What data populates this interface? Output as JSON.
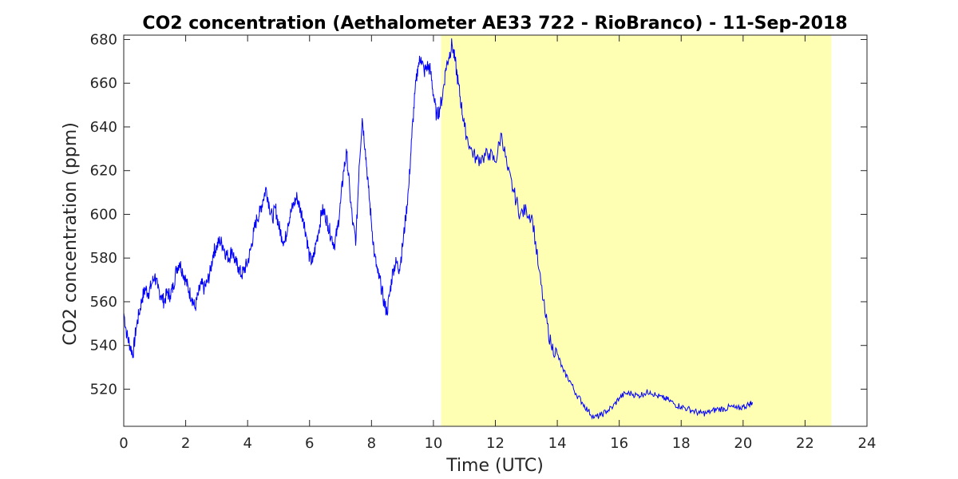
{
  "chart_data": {
    "type": "line",
    "title": "CO2 concentration (Aethalometer AE33 722 - RioBranco) - 11-Sep-2018",
    "xlabel": "Time (UTC)",
    "ylabel": "CO2 concentration (ppm)",
    "xlim": [
      0,
      24
    ],
    "ylim": [
      503,
      682
    ],
    "xticks": [
      "0",
      "2",
      "4",
      "6",
      "8",
      "10",
      "12",
      "14",
      "16",
      "18",
      "20",
      "22",
      "24"
    ],
    "yticks": [
      "520",
      "540",
      "560",
      "580",
      "600",
      "620",
      "640",
      "660",
      "680"
    ],
    "grid": false,
    "line_color": "#0000ff",
    "highlight": {
      "x_start": 10.25,
      "x_end": 22.85,
      "color": "#ffffb3"
    },
    "series": [
      {
        "x": [
          0,
          0.1,
          0.2,
          0.3,
          0.4,
          0.5,
          0.6,
          0.7,
          0.8,
          0.9,
          1.0,
          1.1,
          1.2,
          1.3,
          1.4,
          1.5,
          1.6,
          1.7,
          1.8,
          1.9,
          2.0,
          2.1,
          2.2,
          2.3,
          2.4,
          2.5,
          2.6,
          2.7,
          2.8,
          2.9,
          3.0,
          3.1,
          3.2,
          3.3,
          3.4,
          3.5,
          3.6,
          3.7,
          3.8,
          3.9,
          4.0,
          4.1,
          4.2,
          4.3,
          4.4,
          4.5,
          4.6,
          4.7,
          4.8,
          4.9,
          5.0,
          5.1,
          5.2,
          5.3,
          5.4,
          5.5,
          5.6,
          5.7,
          5.8,
          5.9,
          6.0,
          6.1,
          6.2,
          6.3,
          6.4,
          6.5,
          6.6,
          6.7,
          6.8,
          6.9,
          7.0,
          7.1,
          7.2,
          7.3,
          7.4,
          7.5,
          7.6,
          7.7,
          7.8,
          7.9,
          8.0,
          8.1,
          8.2,
          8.3,
          8.4,
          8.5,
          8.6,
          8.7,
          8.8,
          8.9,
          9.0,
          9.1,
          9.2,
          9.3,
          9.4,
          9.5,
          9.6,
          9.7,
          9.8,
          9.9,
          10.0,
          10.1,
          10.2,
          10.3,
          10.4,
          10.5,
          10.6,
          10.7,
          10.8,
          10.9,
          11.0,
          11.2,
          11.4,
          11.6,
          11.8,
          12.0,
          12.2,
          12.4,
          12.6,
          12.8,
          13.0,
          13.2,
          13.4,
          13.6,
          13.8,
          14.0,
          14.2,
          14.4,
          14.6,
          14.8,
          15.0,
          15.2,
          15.4,
          15.6,
          15.8,
          16.0,
          16.2,
          16.4,
          16.6,
          16.8,
          17.0,
          17.2,
          17.4,
          17.6,
          17.8,
          18.0,
          18.2,
          18.4,
          18.6,
          18.8,
          19.0,
          19.2,
          19.4,
          19.6,
          19.8,
          20.0,
          20.2,
          20.3
        ],
        "y": [
          555,
          545,
          540,
          536,
          548,
          555,
          562,
          566,
          564,
          568,
          572,
          566,
          563,
          560,
          564,
          563,
          567,
          575,
          578,
          574,
          570,
          565,
          562,
          557,
          563,
          568,
          566,
          569,
          574,
          583,
          585,
          588,
          586,
          582,
          580,
          584,
          578,
          576,
          572,
          575,
          578,
          584,
          592,
          598,
          601,
          607,
          612,
          604,
          598,
          603,
          595,
          590,
          587,
          596,
          601,
          605,
          608,
          602,
          598,
          590,
          580,
          578,
          586,
          593,
          602,
          600,
          595,
          590,
          586,
          593,
          605,
          620,
          628,
          610,
          595,
          588,
          622,
          644,
          630,
          612,
          596,
          581,
          573,
          568,
          560,
          555,
          565,
          575,
          578,
          575,
          585,
          598,
          612,
          635,
          655,
          668,
          672,
          665,
          668,
          666,
          655,
          645,
          648,
          655,
          667,
          672,
          678,
          670,
          660,
          650,
          640,
          630,
          625,
          626,
          628,
          624,
          637,
          620,
          610,
          600,
          602,
          598,
          575,
          555,
          540,
          536,
          528,
          524,
          518,
          514,
          510,
          507,
          508,
          510,
          512,
          516,
          518,
          518,
          517,
          518,
          519,
          517,
          516,
          515,
          513,
          512,
          511,
          510,
          509,
          509,
          510,
          511,
          511,
          512,
          511,
          512,
          513,
          514
        ]
      }
    ]
  }
}
